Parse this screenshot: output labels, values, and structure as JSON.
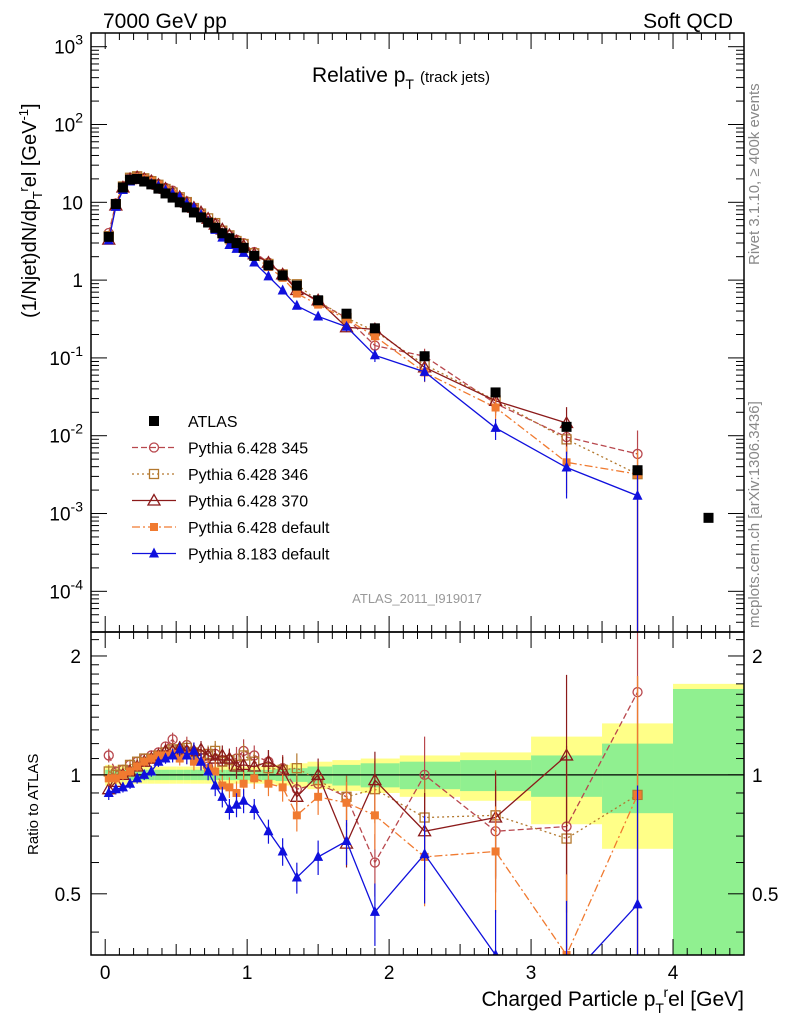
{
  "header": {
    "left": "7000 GeV pp",
    "right": "Soft QCD"
  },
  "side_labels": {
    "rivet": "Rivet 3.1.10, ≥ 400k events",
    "source": "mcplots.cern.ch [arXiv:1306.3436]"
  },
  "chart_data": {
    "type": "line",
    "title": "Relative p_T (track jets)",
    "title_main": "Relative p",
    "title_sub": "T",
    "title_note": "(track jets)",
    "analysis_id": "ATLAS_2011_I919017",
    "ylabel": "(1/Njet)dN/dp_T^rel [GeV^-1]",
    "ylabel_parts": {
      "a": "(1/Njet)dN/dp",
      "sub": "T",
      "sup": "r",
      "b": "el [GeV",
      "sup2": "-1",
      "c": "]"
    },
    "ratio_ylabel": "Ratio to ATLAS",
    "xlabel": "Charged Particle p_T^rel [GeV]",
    "xlabel_parts": {
      "a": "Charged Particle p",
      "sub": "T",
      "sup": "r",
      "b": "el [GeV]"
    },
    "xlim": [
      -0.1,
      4.5
    ],
    "ylim": [
      3e-05,
      1500
    ],
    "yscale": "log",
    "ratio_ylim": [
      0.35,
      2.3
    ],
    "x_ticks": [
      "0",
      "1",
      "2",
      "3",
      "4"
    ],
    "y_ticks": [
      "10^-4",
      "10^-3",
      "10^-2",
      "10^-1",
      "1",
      "10",
      "10^2",
      "10^3"
    ],
    "ratio_ticks": [
      "0.5",
      "1",
      "2"
    ],
    "legend": [
      "ATLAS",
      "Pythia 6.428 345",
      "Pythia 6.428 346",
      "Pythia 6.428 370",
      "Pythia 6.428 default",
      "Pythia 8.183 default"
    ],
    "x": [
      0.025,
      0.075,
      0.125,
      0.175,
      0.225,
      0.275,
      0.325,
      0.375,
      0.425,
      0.475,
      0.525,
      0.575,
      0.625,
      0.675,
      0.725,
      0.775,
      0.825,
      0.875,
      0.925,
      0.975,
      1.05,
      1.15,
      1.25,
      1.35,
      1.5,
      1.7,
      1.9,
      2.25,
      2.75,
      3.25,
      3.75,
      4.25
    ],
    "atlas": [
      3.6,
      9.5,
      15.5,
      19.5,
      20.0,
      18.5,
      17.0,
      15.0,
      13.0,
      11.5,
      10.0,
      8.6,
      7.4,
      6.4,
      5.5,
      4.7,
      4.0,
      3.45,
      3.0,
      2.6,
      2.05,
      1.55,
      1.15,
      0.85,
      0.55,
      0.37,
      0.24,
      0.105,
      0.036,
      0.013,
      0.0036,
      0.00088
    ],
    "atlas_band_yellow": [
      0.06,
      0.055,
      0.055,
      0.055,
      0.05,
      0.05,
      0.05,
      0.05,
      0.05,
      0.05,
      0.05,
      0.05,
      0.05,
      0.05,
      0.05,
      0.05,
      0.05,
      0.05,
      0.05,
      0.05,
      0.05,
      0.05,
      0.06,
      0.07,
      0.08,
      0.09,
      0.1,
      0.12,
      0.14,
      0.25,
      0.35,
      0.7
    ],
    "atlas_band_green": [
      0.03,
      0.03,
      0.03,
      0.03,
      0.03,
      0.03,
      0.03,
      0.03,
      0.03,
      0.03,
      0.03,
      0.03,
      0.03,
      0.03,
      0.03,
      0.03,
      0.03,
      0.03,
      0.03,
      0.03,
      0.03,
      0.03,
      0.035,
      0.04,
      0.05,
      0.06,
      0.07,
      0.08,
      0.09,
      0.12,
      0.2,
      0.65
    ],
    "series": [
      {
        "name": "Pythia 6.428 345",
        "color": "#b8474d",
        "marker": "open-circle",
        "dash": "6,3",
        "ratio": [
          1.12,
          1.02,
          1.03,
          1.06,
          1.08,
          1.1,
          1.12,
          1.14,
          1.18,
          1.23,
          1.15,
          1.19,
          1.14,
          1.12,
          1.05,
          1.13,
          1.08,
          1.09,
          1.1,
          1.15,
          1.12,
          1.08,
          1.04,
          0.92,
          0.95,
          0.88,
          0.6,
          1.0,
          0.72,
          0.74,
          1.62,
          null
        ],
        "rerr": [
          0.04,
          0.03,
          0.03,
          0.03,
          0.03,
          0.03,
          0.03,
          0.03,
          0.03,
          0.04,
          0.04,
          0.05,
          0.05,
          0.05,
          0.05,
          0.06,
          0.06,
          0.06,
          0.07,
          0.07,
          0.06,
          0.07,
          0.08,
          0.09,
          0.1,
          0.13,
          0.18,
          0.25,
          0.3,
          0.6,
          1.0,
          null
        ]
      },
      {
        "name": "Pythia 6.428 346",
        "color": "#b3782e",
        "marker": "open-square",
        "dash": "2,3",
        "ratio": [
          1.02,
          1.0,
          1.03,
          1.06,
          1.08,
          1.1,
          1.1,
          1.12,
          1.14,
          1.16,
          1.16,
          1.17,
          1.14,
          1.12,
          1.13,
          1.15,
          1.08,
          1.09,
          1.06,
          1.12,
          1.08,
          1.04,
          1.03,
          1.04,
          0.97,
          0.88,
          0.92,
          0.78,
          0.79,
          0.69,
          0.89,
          null
        ],
        "rerr": [
          0.04,
          0.03,
          0.03,
          0.03,
          0.03,
          0.03,
          0.03,
          0.03,
          0.03,
          0.04,
          0.04,
          0.05,
          0.05,
          0.05,
          0.05,
          0.06,
          0.06,
          0.06,
          0.07,
          0.07,
          0.06,
          0.07,
          0.08,
          0.09,
          0.1,
          0.13,
          0.18,
          0.25,
          0.3,
          0.6,
          1.0,
          null
        ]
      },
      {
        "name": "Pythia 6.428 370",
        "color": "#8b1a1a",
        "marker": "open-triangle",
        "dash": "",
        "ratio": [
          0.92,
          0.96,
          1.0,
          1.02,
          1.05,
          1.08,
          1.1,
          1.12,
          1.15,
          1.15,
          1.17,
          1.15,
          1.15,
          1.16,
          1.12,
          1.1,
          1.12,
          1.1,
          1.05,
          1.06,
          1.05,
          1.08,
          1.03,
          0.88,
          1.0,
          0.67,
          0.97,
          0.72,
          0.78,
          1.12,
          null,
          null
        ],
        "rerr": [
          0.04,
          0.03,
          0.03,
          0.03,
          0.03,
          0.03,
          0.03,
          0.03,
          0.03,
          0.04,
          0.04,
          0.05,
          0.05,
          0.05,
          0.05,
          0.06,
          0.06,
          0.06,
          0.07,
          0.07,
          0.06,
          0.07,
          0.08,
          0.09,
          0.1,
          0.13,
          0.18,
          0.25,
          0.3,
          0.6,
          null,
          null
        ]
      },
      {
        "name": "Pythia 6.428 default",
        "color": "#f07a30",
        "marker": "filled-square",
        "dash": "8,3,2,3",
        "ratio": [
          0.98,
          0.98,
          1.0,
          1.02,
          1.05,
          1.08,
          1.1,
          1.12,
          1.12,
          1.13,
          1.1,
          1.12,
          1.08,
          1.08,
          1.04,
          1.02,
          0.94,
          0.93,
          0.9,
          0.95,
          0.98,
          0.95,
          0.93,
          0.79,
          0.88,
          0.85,
          0.79,
          0.62,
          0.64,
          0.35,
          0.89,
          null
        ],
        "rerr": [
          0.04,
          0.03,
          0.03,
          0.03,
          0.03,
          0.03,
          0.03,
          0.03,
          0.03,
          0.04,
          0.04,
          0.05,
          0.05,
          0.05,
          0.05,
          0.06,
          0.06,
          0.06,
          0.07,
          0.07,
          0.06,
          0.07,
          0.08,
          0.09,
          0.1,
          0.13,
          0.18,
          0.25,
          0.3,
          0.6,
          1.0,
          null
        ]
      },
      {
        "name": "Pythia 8.183 default",
        "color": "#1010dd",
        "marker": "filled-triangle",
        "dash": "",
        "ratio": [
          0.9,
          0.92,
          0.93,
          0.95,
          0.98,
          1.0,
          1.02,
          1.08,
          1.1,
          1.12,
          1.16,
          1.12,
          1.15,
          1.08,
          1.02,
          0.94,
          0.88,
          0.82,
          0.84,
          0.86,
          0.82,
          0.72,
          0.64,
          0.55,
          0.62,
          0.68,
          0.45,
          0.63,
          0.35,
          0.3,
          0.47,
          null
        ],
        "rerr": [
          0.04,
          0.03,
          0.03,
          0.03,
          0.03,
          0.03,
          0.03,
          0.03,
          0.03,
          0.04,
          0.04,
          0.05,
          0.05,
          0.05,
          0.05,
          0.06,
          0.06,
          0.06,
          0.07,
          0.07,
          0.06,
          0.07,
          0.08,
          0.09,
          0.1,
          0.13,
          0.18,
          0.25,
          0.3,
          0.6,
          1.0,
          null
        ]
      }
    ]
  }
}
